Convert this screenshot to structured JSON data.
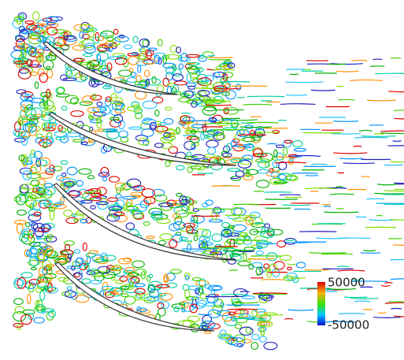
{
  "colorbar": {
    "max": 50000,
    "min": -50000
  }
}
